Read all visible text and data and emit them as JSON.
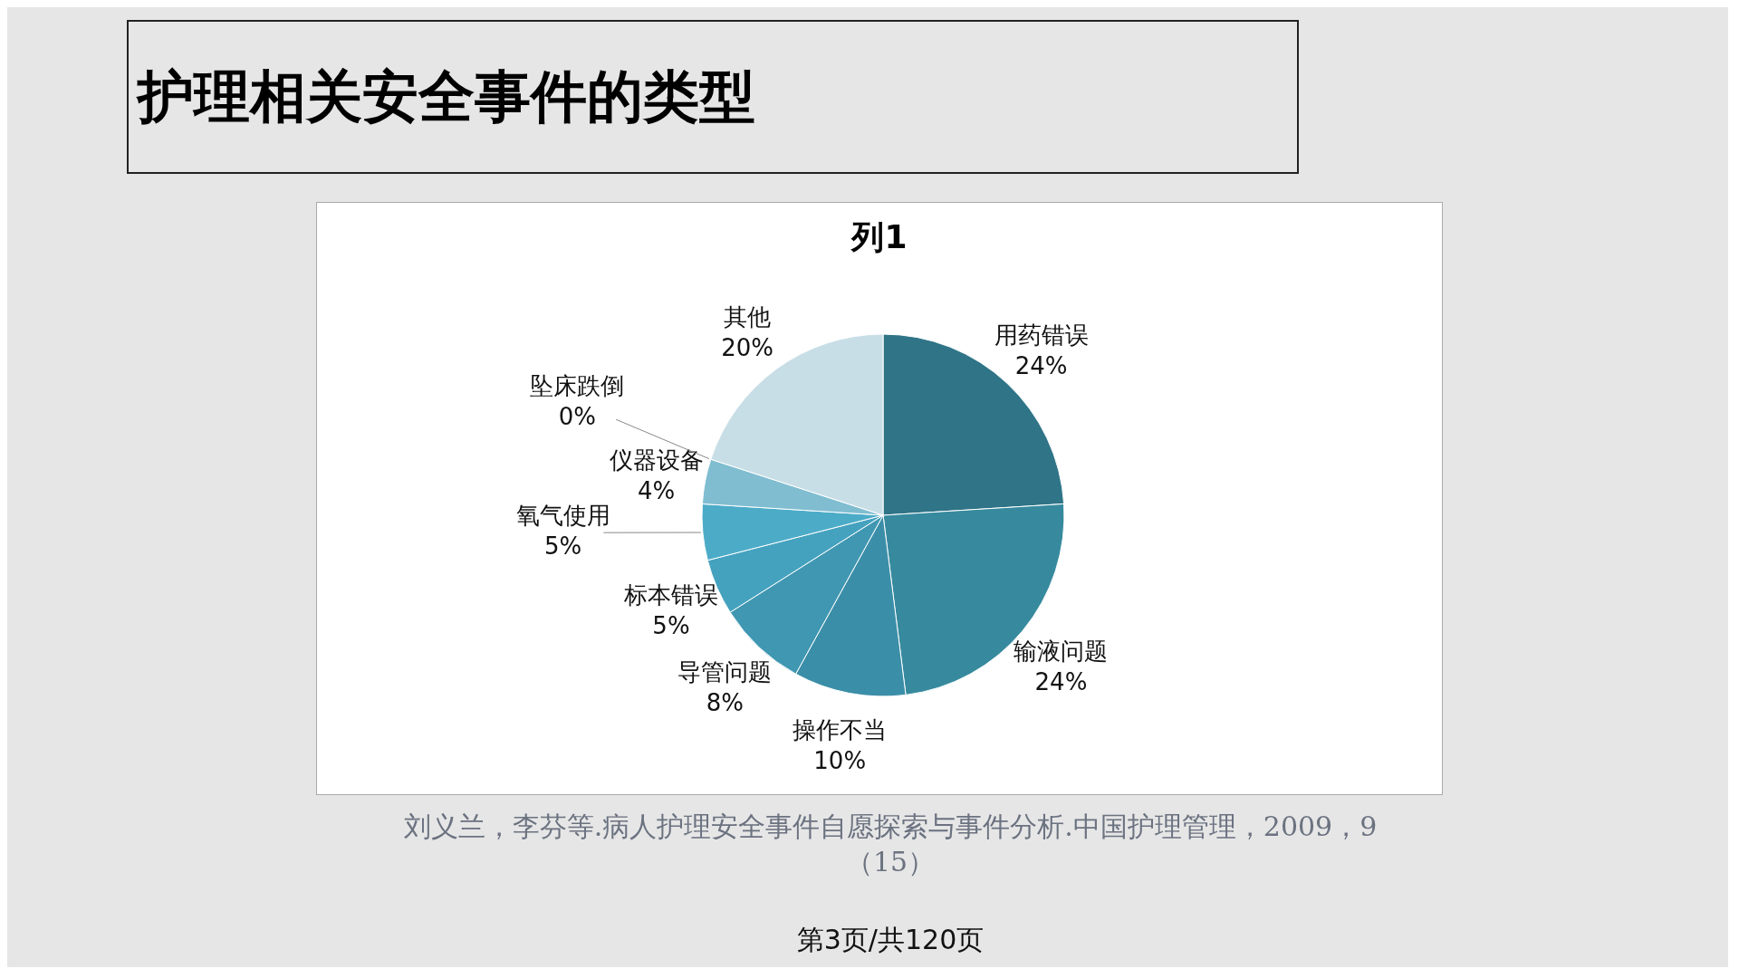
{
  "chart_data": {
    "type": "pie",
    "title": "护理相关安全事件的类型",
    "subtitle": "列1",
    "categories": [
      "用药错误",
      "输液问题",
      "操作不当",
      "导管问题",
      "标本错误",
      "氧气使用",
      "仪器设备",
      "坠床跌倒",
      "其他"
    ],
    "values": [
      24,
      24,
      10,
      8,
      5,
      5,
      4,
      0,
      20
    ],
    "value_labels": [
      "24%",
      "24%",
      "10%",
      "8%",
      "5%",
      "5%",
      "4%",
      "0%",
      "20%"
    ],
    "colors": [
      "#2f7487",
      "#378a9e",
      "#3b8ea8",
      "#4097b2",
      "#45a2bf",
      "#4cacc8",
      "#80bdd0",
      "#b0d3df",
      "#c8dee6"
    ],
    "annotations": [
      "刘义兰，李芬等.病人护理安全事件自愿探索与事件分析.中国护理管理，2009，9（15）",
      "第3页/共120页"
    ]
  }
}
